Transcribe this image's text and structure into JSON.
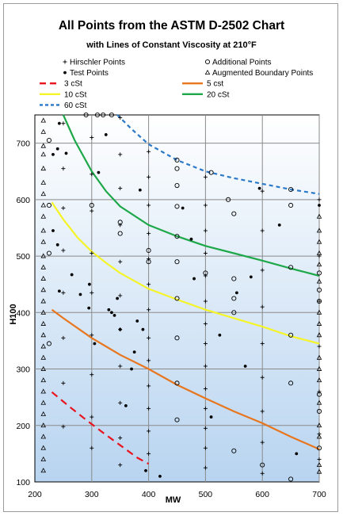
{
  "chart_data": {
    "type": "scatter",
    "title": "All Points from the ASTM D-2502 Chart",
    "subtitle": "with Lines of Constant Viscosity at 210°F",
    "xlabel": "MW",
    "ylabel": "H100",
    "xlim": [
      200,
      700
    ],
    "ylim": [
      100,
      750
    ],
    "xticks": [
      200,
      300,
      400,
      500,
      600,
      700
    ],
    "yticks": [
      100,
      200,
      300,
      400,
      500,
      600,
      700
    ],
    "grid": true,
    "legend_position": "top",
    "legend": [
      {
        "label": "Hirschler Points",
        "marker": "plus"
      },
      {
        "label": "Additional Points",
        "marker": "circle"
      },
      {
        "label": "Test Points",
        "marker": "dot"
      },
      {
        "label": "Augmented Boundary Points",
        "marker": "triangle"
      },
      {
        "label": "3 cSt",
        "line": "dashed",
        "color": "#e8141e"
      },
      {
        "label": "5 cst",
        "line": "solid",
        "color": "#e8761e"
      },
      {
        "label": "10 cSt",
        "line": "solid",
        "color": "#f4f428"
      },
      {
        "label": "20 cSt",
        "line": "solid",
        "color": "#1ea84a"
      },
      {
        "label": "60 cSt",
        "line": "dashed",
        "color": "#2a78c8"
      }
    ],
    "series": [
      {
        "name": "3 cSt",
        "color": "#e8141e",
        "dash": true,
        "x": [
          230,
          260,
          290,
          320,
          350,
          380,
          400
        ],
        "y": [
          259,
          234,
          210,
          187,
          165,
          143,
          132
        ]
      },
      {
        "name": "5 cst",
        "color": "#e8761e",
        "dash": false,
        "x": [
          230,
          250,
          300,
          350,
          400,
          450,
          500,
          550,
          600,
          650,
          700
        ],
        "y": [
          405,
          390,
          355,
          325,
          300,
          272,
          248,
          225,
          204,
          180,
          158
        ]
      },
      {
        "name": "10 cSt",
        "color": "#f4f428",
        "dash": false,
        "x": [
          230,
          250,
          275,
          300,
          325,
          350,
          400,
          450,
          500,
          550,
          600,
          650,
          700
        ],
        "y": [
          595,
          565,
          533,
          508,
          488,
          470,
          442,
          423,
          405,
          390,
          375,
          358,
          345
        ]
      },
      {
        "name": "20 cSt",
        "color": "#1ea84a",
        "dash": false,
        "x": [
          250,
          270,
          300,
          325,
          350,
          400,
          450,
          500,
          550,
          600,
          650,
          700
        ],
        "y": [
          750,
          705,
          650,
          615,
          588,
          555,
          535,
          518,
          505,
          492,
          478,
          465
        ]
      },
      {
        "name": "60 cSt",
        "color": "#2a78c8",
        "dash": true,
        "x": [
          345,
          370,
          400,
          450,
          500,
          550,
          600,
          650,
          700
        ],
        "y": [
          750,
          725,
          698,
          670,
          650,
          638,
          628,
          618,
          610
        ]
      }
    ],
    "points": {
      "plus": [
        [
          250,
          735
        ],
        [
          250,
          655
        ],
        [
          250,
          585
        ],
        [
          250,
          510
        ],
        [
          250,
          435
        ],
        [
          250,
          355
        ],
        [
          250,
          275
        ],
        [
          250,
          198
        ],
        [
          300,
          710
        ],
        [
          300,
          645
        ],
        [
          300,
          580
        ],
        [
          300,
          505
        ],
        [
          300,
          435
        ],
        [
          300,
          360
        ],
        [
          300,
          290
        ],
        [
          300,
          215
        ],
        [
          300,
          160
        ],
        [
          350,
          745
        ],
        [
          350,
          680
        ],
        [
          350,
          620
        ],
        [
          350,
          555
        ],
        [
          350,
          490
        ],
        [
          350,
          430
        ],
        [
          350,
          370
        ],
        [
          350,
          305
        ],
        [
          350,
          240
        ],
        [
          350,
          178
        ],
        [
          350,
          130
        ],
        [
          400,
          685
        ],
        [
          400,
          640
        ],
        [
          400,
          590
        ],
        [
          400,
          540
        ],
        [
          400,
          495
        ],
        [
          400,
          450
        ],
        [
          400,
          405
        ],
        [
          400,
          355
        ],
        [
          400,
          315
        ],
        [
          400,
          270
        ],
        [
          400,
          230
        ],
        [
          400,
          190
        ],
        [
          400,
          150
        ],
        [
          500,
          640
        ],
        [
          500,
          590
        ],
        [
          500,
          545
        ],
        [
          500,
          505
        ],
        [
          500,
          465
        ],
        [
          500,
          420
        ],
        [
          500,
          380
        ],
        [
          500,
          345
        ],
        [
          500,
          305
        ],
        [
          500,
          265
        ],
        [
          500,
          230
        ],
        [
          500,
          195
        ],
        [
          500,
          160
        ],
        [
          500,
          125
        ],
        [
          600,
          615
        ],
        [
          600,
          545
        ],
        [
          600,
          475
        ],
        [
          600,
          410
        ],
        [
          600,
          345
        ],
        [
          600,
          285
        ],
        [
          600,
          225
        ],
        [
          600,
          170
        ],
        [
          600,
          115
        ],
        [
          700,
          600
        ],
        [
          700,
          500
        ],
        [
          700,
          420
        ],
        [
          700,
          340
        ],
        [
          700,
          260
        ],
        [
          700,
          185
        ],
        [
          700,
          140
        ]
      ],
      "circle": [
        [
          225,
          705
        ],
        [
          225,
          590
        ],
        [
          225,
          505
        ],
        [
          225,
          345
        ],
        [
          290,
          750
        ],
        [
          310,
          750
        ],
        [
          320,
          750
        ],
        [
          335,
          750
        ],
        [
          300,
          590
        ],
        [
          350,
          560
        ],
        [
          350,
          540
        ],
        [
          400,
          510
        ],
        [
          400,
          490
        ],
        [
          450,
          670
        ],
        [
          450,
          655
        ],
        [
          450,
          625
        ],
        [
          450,
          588
        ],
        [
          450,
          535
        ],
        [
          450,
          490
        ],
        [
          450,
          425
        ],
        [
          450,
          355
        ],
        [
          450,
          275
        ],
        [
          450,
          210
        ],
        [
          500,
          470
        ],
        [
          510,
          648
        ],
        [
          540,
          600
        ],
        [
          550,
          575
        ],
        [
          550,
          460
        ],
        [
          550,
          425
        ],
        [
          550,
          400
        ],
        [
          550,
          155
        ],
        [
          600,
          130
        ],
        [
          650,
          618
        ],
        [
          650,
          590
        ],
        [
          650,
          480
        ],
        [
          650,
          360
        ],
        [
          650,
          275
        ],
        [
          650,
          105
        ],
        [
          700,
          470
        ],
        [
          700,
          440
        ],
        [
          700,
          420
        ],
        [
          700,
          255
        ],
        [
          700,
          225
        ],
        [
          700,
          160
        ]
      ],
      "dot": [
        [
          243,
          735
        ],
        [
          240,
          690
        ],
        [
          232,
          680
        ],
        [
          255,
          682
        ],
        [
          232,
          545
        ],
        [
          240,
          520
        ],
        [
          265,
          467
        ],
        [
          243,
          438
        ],
        [
          280,
          432
        ],
        [
          296,
          450
        ],
        [
          295,
          408
        ],
        [
          305,
          345
        ],
        [
          312,
          648
        ],
        [
          325,
          715
        ],
        [
          330,
          405
        ],
        [
          335,
          400
        ],
        [
          340,
          395
        ],
        [
          345,
          425
        ],
        [
          350,
          370
        ],
        [
          360,
          235
        ],
        [
          370,
          300
        ],
        [
          375,
          330
        ],
        [
          380,
          385
        ],
        [
          385,
          617
        ],
        [
          390,
          370
        ],
        [
          395,
          120
        ],
        [
          420,
          110
        ],
        [
          460,
          585
        ],
        [
          475,
          530
        ],
        [
          480,
          460
        ],
        [
          510,
          215
        ],
        [
          525,
          360
        ],
        [
          555,
          435
        ],
        [
          570,
          305
        ],
        [
          580,
          463
        ],
        [
          595,
          620
        ],
        [
          630,
          555
        ],
        [
          660,
          150
        ],
        [
          700,
          590
        ]
      ],
      "triangle": [
        [
          215,
          740
        ],
        [
          215,
          720
        ],
        [
          215,
          695
        ],
        [
          215,
          680
        ],
        [
          215,
          655
        ],
        [
          215,
          630
        ],
        [
          215,
          610
        ],
        [
          215,
          590
        ],
        [
          215,
          570
        ],
        [
          215,
          545
        ],
        [
          215,
          525
        ],
        [
          215,
          500
        ],
        [
          215,
          480
        ],
        [
          215,
          460
        ],
        [
          215,
          440
        ],
        [
          215,
          420
        ],
        [
          215,
          400
        ],
        [
          215,
          380
        ],
        [
          215,
          360
        ],
        [
          215,
          340
        ],
        [
          215,
          320
        ],
        [
          215,
          300
        ],
        [
          215,
          280
        ],
        [
          215,
          260
        ],
        [
          215,
          240
        ],
        [
          215,
          220
        ],
        [
          215,
          200
        ],
        [
          215,
          180
        ],
        [
          215,
          160
        ],
        [
          215,
          140
        ],
        [
          215,
          120
        ],
        [
          700,
          570
        ],
        [
          700,
          545
        ],
        [
          700,
          525
        ],
        [
          700,
          505
        ],
        [
          700,
          485
        ],
        [
          700,
          455
        ],
        [
          700,
          400
        ],
        [
          700,
          380
        ],
        [
          700,
          360
        ],
        [
          700,
          320
        ],
        [
          700,
          300
        ],
        [
          700,
          280
        ],
        [
          700,
          240
        ],
        [
          700,
          200
        ],
        [
          700,
          180
        ],
        [
          700,
          130
        ],
        [
          700,
          118
        ]
      ]
    }
  }
}
